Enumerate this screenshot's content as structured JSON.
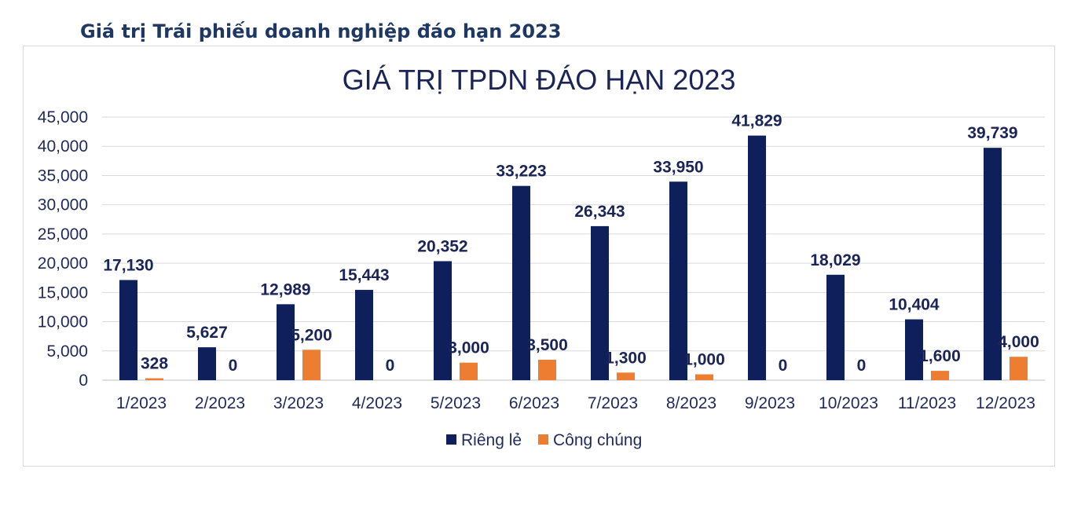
{
  "heading": "Giá trị Trái phiếu doanh nghiệp đáo hạn 2023",
  "chart_data": {
    "type": "bar",
    "title": "GIÁ TRỊ TPDN ĐÁO HẠN 2023",
    "xlabel": "",
    "ylabel": "",
    "ylim": [
      0,
      45000
    ],
    "yticks": [
      "0",
      "5,000",
      "10,000",
      "15,000",
      "20,000",
      "25,000",
      "30,000",
      "35,000",
      "40,000",
      "45,000"
    ],
    "grid": true,
    "legend_position": "bottom",
    "categories": [
      "1/2023",
      "2/2023",
      "3/2023",
      "4/2023",
      "5/2023",
      "6/2023",
      "7/2023",
      "8/2023",
      "9/2023",
      "10/2023",
      "11/2023",
      "12/2023"
    ],
    "series": [
      {
        "name": "Riêng lẻ",
        "color": "#0e1f5b",
        "values": [
          17130,
          5627,
          12989,
          15443,
          20352,
          33223,
          26343,
          33950,
          41829,
          18029,
          10404,
          39739
        ],
        "labels": [
          "17,130",
          "5,627",
          "12,989",
          "15,443",
          "20,352",
          "33,223",
          "26,343",
          "33,950",
          "41,829",
          "18,029",
          "10,404",
          "39,739"
        ]
      },
      {
        "name": "Công chúng",
        "color": "#ed7d31",
        "values": [
          328,
          0,
          5200,
          0,
          3000,
          3500,
          1300,
          1000,
          0,
          0,
          1600,
          4000
        ],
        "labels": [
          "328",
          "0",
          "5,200",
          "0",
          "3,000",
          "3,500",
          "1,300",
          "1,000",
          "0",
          "0",
          "1,600",
          "4,000"
        ]
      }
    ]
  }
}
